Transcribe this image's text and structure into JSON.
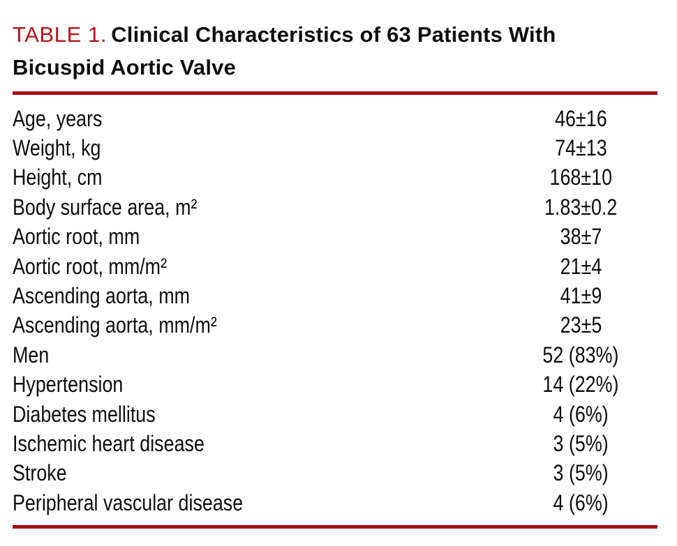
{
  "colors": {
    "accent_red": "#b5121b",
    "rule_red": "#a50211",
    "text_black": "#0e0e0e"
  },
  "table": {
    "number_label": "TABLE 1.",
    "title_line1": "Clinical Characteristics of 63 Patients With",
    "title_line2": "Bicuspid Aortic Valve",
    "rows": [
      {
        "label": "Age, years",
        "value": "46±16"
      },
      {
        "label": "Weight, kg",
        "value": "74±13"
      },
      {
        "label": "Height, cm",
        "value": "168±10"
      },
      {
        "label": "Body surface area, m²",
        "value": "1.83±0.2"
      },
      {
        "label": "Aortic root, mm",
        "value": "38±7"
      },
      {
        "label": "Aortic root, mm/m²",
        "value": "21±4"
      },
      {
        "label": "Ascending aorta, mm",
        "value": "41±9"
      },
      {
        "label": "Ascending aorta, mm/m²",
        "value": "23±5"
      },
      {
        "label": "Men",
        "value": "52 (83%)"
      },
      {
        "label": "Hypertension",
        "value": "14 (22%)"
      },
      {
        "label": "Diabetes mellitus",
        "value": "4 (6%)"
      },
      {
        "label": "Ischemic heart disease",
        "value": "3 (5%)"
      },
      {
        "label": "Stroke",
        "value": "3 (5%)"
      },
      {
        "label": "Peripheral vascular disease",
        "value": "4 (6%)"
      }
    ]
  }
}
